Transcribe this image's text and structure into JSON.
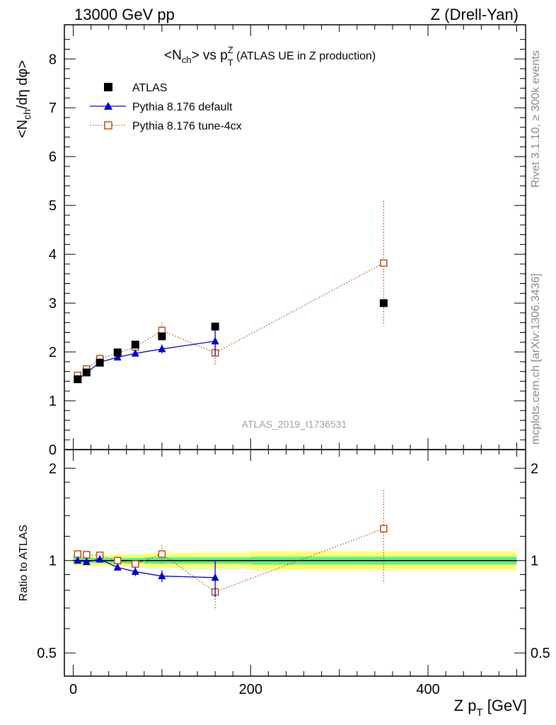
{
  "header": {
    "left": "13000 GeV pp",
    "right": "Z (Drell-Yan)"
  },
  "side_labels": {
    "rivet": "Rivet 3.1.10, ≥ 300k events",
    "mcplots": "mcplots.cern.ch [arXiv:1306.3436]"
  },
  "watermark": "ATLAS_2019_I1736531",
  "colors": {
    "data": "#000000",
    "default": "#0000cc",
    "tune": "#b5501b",
    "band_green": "#66ee88",
    "band_yellow": "#ffff77"
  },
  "chart_data": [
    {
      "type": "scatter",
      "panel": "main",
      "title": "<N_ch> vs p_T^Z (ATLAS UE in Z production)",
      "title_parts": {
        "main": "<N",
        "sub1": "ch",
        "mid": "> vs p",
        "sup": "Z",
        "sub2": "T",
        "rest": " (ATLAS UE in Z production)"
      },
      "xlabel": "Z p_T [GeV]",
      "ylabel": "<N_ch/dη dφ>",
      "ylabel_parts": {
        "a": "<N",
        "sub": "ch",
        "b": "/dη dφ>"
      },
      "xlim": [
        -10,
        510
      ],
      "ylim": [
        0,
        8.7
      ],
      "x_ticks": [
        0,
        200,
        400
      ],
      "y_ticks": [
        0,
        1,
        2,
        3,
        4,
        5,
        6,
        7,
        8
      ],
      "legend": [
        "ATLAS",
        "Pythia 8.176 default",
        "Pythia 8.176 tune-4cx"
      ],
      "legend_position": "top-left",
      "series": [
        {
          "name": "ATLAS",
          "style": "filled-square",
          "x": [
            5,
            15,
            30,
            50,
            70,
            100,
            160,
            350
          ],
          "y": [
            1.44,
            1.58,
            1.78,
            1.99,
            2.15,
            2.32,
            2.52,
            3.0
          ],
          "err": [
            0.03,
            0.03,
            0.03,
            0.03,
            0.04,
            0.05,
            0.06,
            0.08
          ]
        },
        {
          "name": "Pythia 8.176 default",
          "style": "blue-triangle-line",
          "x": [
            5,
            15,
            30,
            50,
            70,
            100,
            160
          ],
          "y": [
            1.44,
            1.57,
            1.79,
            1.89,
            1.97,
            2.06,
            2.22
          ],
          "err": [
            0.02,
            0.02,
            0.03,
            0.04,
            0.06,
            0.09,
            0.3
          ]
        },
        {
          "name": "Pythia 8.176 tune-4cx",
          "style": "open-square-dotted",
          "x": [
            5,
            15,
            30,
            50,
            70,
            100,
            160,
            350
          ],
          "y": [
            1.52,
            1.65,
            1.86,
            1.98,
            2.1,
            2.44,
            1.98,
            3.82
          ],
          "err": [
            0.02,
            0.02,
            0.03,
            0.04,
            0.06,
            0.17,
            0.25,
            1.28
          ]
        }
      ]
    },
    {
      "type": "scatter",
      "panel": "ratio",
      "ylabel": "Ratio to ATLAS",
      "xlabel": "Z p_T [GeV]",
      "ylim": [
        0.42,
        2.3
      ],
      "y_scale": "log",
      "y_ticks": [
        0.5,
        1,
        2
      ],
      "y_tick_labels": [
        "0.5",
        "1",
        "2"
      ],
      "bands": {
        "edges": [
          0,
          10,
          20,
          40,
          60,
          80,
          120,
          200,
          500
        ],
        "green": [
          0.02,
          0.02,
          0.02,
          0.02,
          0.02,
          0.025,
          0.025,
          0.03
        ],
        "yellow": [
          0.04,
          0.04,
          0.04,
          0.045,
          0.045,
          0.055,
          0.06,
          0.07
        ]
      },
      "series": [
        {
          "name": "Pythia 8.176 default",
          "x": [
            5,
            15,
            30,
            50,
            70,
            100,
            160
          ],
          "y": [
            1.0,
            0.99,
            1.01,
            0.95,
            0.92,
            0.89,
            0.88
          ],
          "err": [
            0.01,
            0.01,
            0.015,
            0.02,
            0.03,
            0.04,
            0.12
          ]
        },
        {
          "name": "Pythia 8.176 tune-4cx",
          "x": [
            5,
            15,
            30,
            50,
            70,
            100,
            160,
            350
          ],
          "y": [
            1.05,
            1.045,
            1.04,
            1.0,
            0.975,
            1.05,
            0.79,
            1.27
          ],
          "err": [
            0.01,
            0.01,
            0.015,
            0.02,
            0.03,
            0.07,
            0.1,
            0.43
          ]
        }
      ]
    }
  ]
}
